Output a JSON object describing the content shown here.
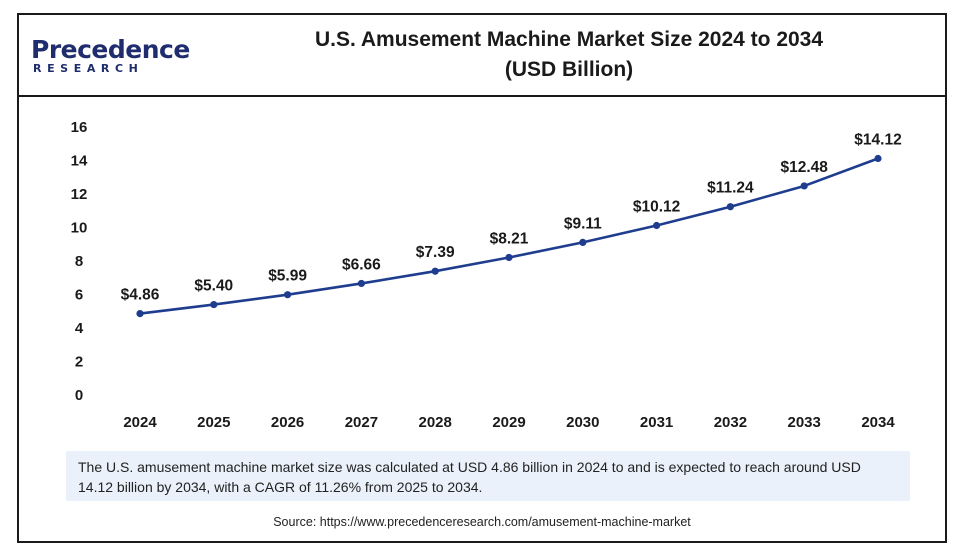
{
  "brand": {
    "name": "Precedence",
    "sub": "RESEARCH",
    "color": "#1f2d6e"
  },
  "title_line1": "U.S. Amusement Machine Market Size 2024 to 2034",
  "title_line2": "(USD Billion)",
  "note": "The U.S. amusement machine market size was calculated at USD 4.86  billion in 2024 to and is expected to reach around USD 14.12 billion by 2034, with a CAGR of 11.26% from 2025 to 2034.",
  "source": "Source: https://www.precedenceresearch.com/amusement-machine-market",
  "chart_data": {
    "type": "line",
    "title": "U.S. Amusement Machine Market Size 2024 to 2034 (USD Billion)",
    "x": [
      "2024",
      "2025",
      "2026",
      "2027",
      "2028",
      "2029",
      "2030",
      "2031",
      "2032",
      "2033",
      "2034"
    ],
    "values": [
      4.86,
      5.4,
      5.99,
      6.66,
      7.39,
      8.21,
      9.11,
      10.12,
      11.24,
      12.48,
      14.12
    ],
    "data_labels": [
      "$4.86",
      "$5.40",
      "$5.99",
      "$6.66",
      "$7.39",
      "$8.21",
      "$9.11",
      "$10.12",
      "$11.24",
      "$12.48",
      "$14.12"
    ],
    "yticks": [
      "0",
      "2",
      "4",
      "6",
      "8",
      "10",
      "12",
      "14",
      "16"
    ],
    "ylim": [
      0,
      16
    ],
    "grid": false,
    "legend": false,
    "line_color": "#1f3d8f"
  }
}
